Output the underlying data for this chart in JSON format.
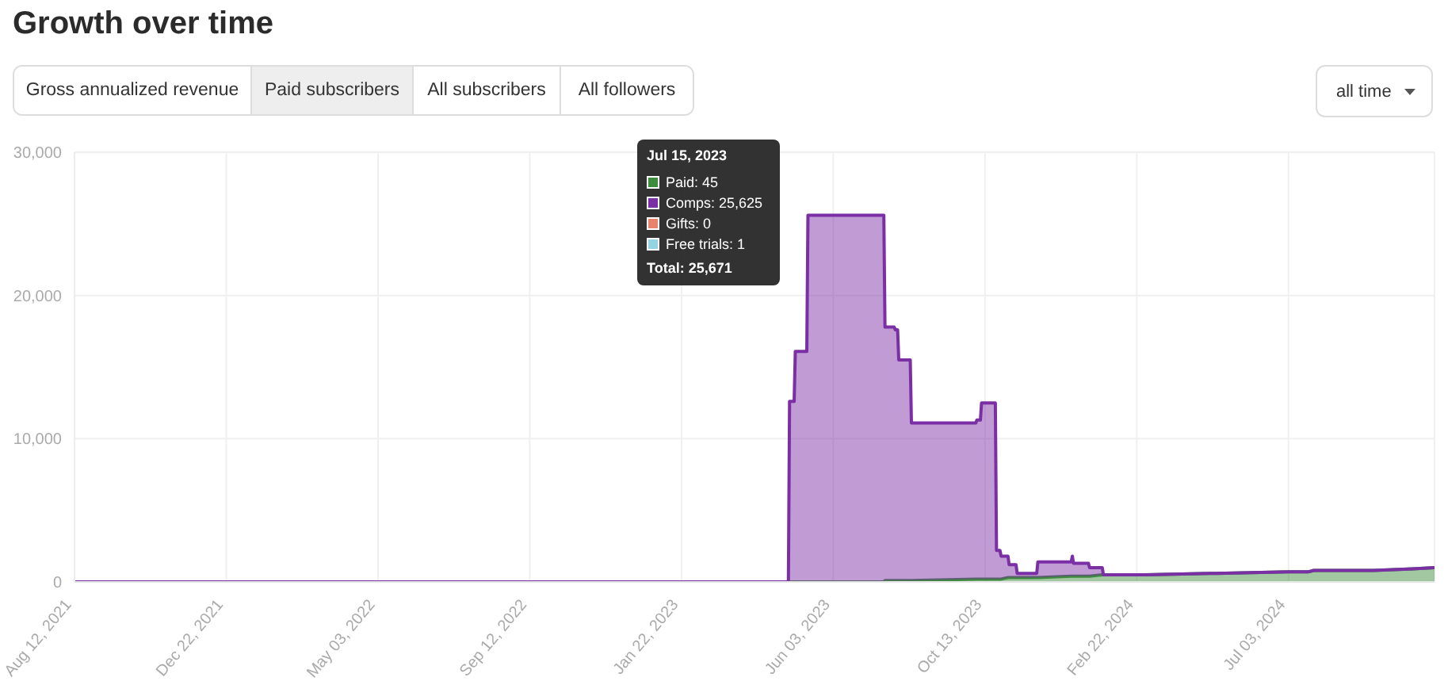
{
  "chart_data": {
    "type": "area",
    "title": "Growth over time",
    "annotations": [
      "Gross annualized revenue",
      "Paid subscribers",
      "All subscribers",
      "All followers",
      "all time",
      "Jul 15, 2023",
      "Paid: 45",
      "Comps: 25,625",
      "Gifts: 0",
      "Free trials: 1",
      "Total: 25,671"
    ],
    "x": [
      "2021-08-12",
      "2023-04-25",
      "2023-04-26",
      "2023-04-30",
      "2023-05-01",
      "2023-05-11",
      "2023-05-12",
      "2023-07-15",
      "2023-07-17",
      "2023-07-18",
      "2023-07-26",
      "2023-07-27",
      "2023-07-29",
      "2023-07-30",
      "2023-08-09",
      "2023-08-10",
      "2023-10-05",
      "2023-10-06",
      "2023-10-09",
      "2023-10-10",
      "2023-10-22",
      "2023-10-23",
      "2023-10-26",
      "2023-10-27",
      "2023-11-02",
      "2023-11-03",
      "2023-11-09",
      "2023-11-10",
      "2023-11-27",
      "2023-11-28",
      "2023-12-27",
      "2023-12-28",
      "2023-12-29",
      "2024-01-11",
      "2024-01-12",
      "2024-01-23",
      "2024-01-24",
      "2024-03-01",
      "2024-05-01",
      "2024-07-03",
      "2024-07-20",
      "2024-07-25",
      "2024-09-15",
      "2024-10-15",
      "2024-11-07"
    ],
    "series": [
      {
        "color": "#3d8b3d",
        "values": [
          0,
          0,
          0,
          0,
          0,
          0,
          0,
          0,
          0,
          100,
          100,
          100,
          100,
          100,
          100,
          100,
          200,
          200,
          200,
          200,
          200,
          200,
          200,
          200,
          300,
          300,
          300,
          300,
          300,
          300,
          400,
          400,
          400,
          400,
          400,
          500,
          500,
          500,
          600,
          700,
          700,
          800,
          800,
          900,
          1000
        ]
      },
      {
        "color": "#7b2fa5",
        "values": [
          0,
          0,
          12600,
          12600,
          16100,
          16100,
          25600,
          25600,
          25600,
          17700,
          17700,
          17500,
          17500,
          15400,
          15400,
          11000,
          10900,
          11100,
          11100,
          12300,
          12300,
          2000,
          2000,
          1600,
          1500,
          900,
          900,
          300,
          300,
          1100,
          1000,
          1400,
          900,
          900,
          600,
          500,
          0,
          0,
          0,
          0,
          0,
          0,
          0,
          0,
          0
        ]
      }
    ],
    "stacked": true,
    "xlim": [
      "2021-08-12",
      "2024-11-07"
    ],
    "xticks": [
      {
        "value": "2021-08-12",
        "label": "Aug 12, 2021"
      },
      {
        "value": "2021-12-22",
        "label": "Dec 22, 2021"
      },
      {
        "value": "2022-05-03",
        "label": "May 03, 2022"
      },
      {
        "value": "2022-09-12",
        "label": "Sep 12, 2022"
      },
      {
        "value": "2023-01-22",
        "label": "Jan 22, 2023"
      },
      {
        "value": "2023-06-03",
        "label": "Jun 03, 2023"
      },
      {
        "value": "2023-10-13",
        "label": "Oct 13, 2023"
      },
      {
        "value": "2024-02-22",
        "label": "Feb 22, 2024"
      },
      {
        "value": "2024-07-03",
        "label": "Jul 03, 2024"
      }
    ],
    "ylim": [
      0,
      30000
    ],
    "yticks": [
      0,
      {
        "value": 10000,
        "label": "10,000"
      },
      {
        "value": 20000,
        "label": "20,000"
      },
      {
        "value": 30000,
        "label": "30,000"
      }
    ],
    "grid": true
  }
}
